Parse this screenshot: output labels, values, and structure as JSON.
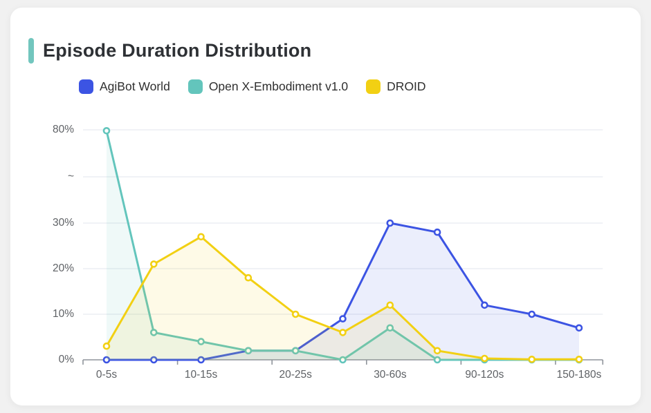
{
  "header": {
    "title": "Episode Duration Distribution"
  },
  "theme": {
    "page_bg": "#F1F1F1",
    "card_bg": "#FFFFFF",
    "accent_bar": "#72C6BE",
    "title_color": "#2E3135",
    "axis_line": "#8F949B",
    "grid_line": "#E7EAF0",
    "tick_label_color": "#5E6165",
    "legend_text_color": "#2F2F2F"
  },
  "chart_data": {
    "type": "line",
    "title": "Episode Duration Distribution",
    "categories": [
      "0-5s",
      "",
      "10-15s",
      "",
      "20-25s",
      "",
      "30-60s",
      "",
      "90-120s",
      "",
      "150-180s"
    ],
    "x_tick_labels": [
      "0-5s",
      "10-15s",
      "20-25s",
      "30-60s",
      "90-120s",
      "150-180s"
    ],
    "y_tick_labels": [
      "0%",
      "10%",
      "20%",
      "30%",
      "~",
      "80%"
    ],
    "y_axis_break": {
      "between": [
        "30%",
        "80%"
      ],
      "symbol": "~"
    },
    "ylim": [
      0,
      80
    ],
    "unit": "percent",
    "grid": true,
    "area_fill": true,
    "legend_position": "top",
    "series": [
      {
        "name": "AgiBot World",
        "color": "#3C54E3",
        "values": [
          0,
          0,
          0,
          2,
          2,
          9,
          30,
          28,
          12,
          10,
          7
        ]
      },
      {
        "name": "Open X-Embodiment v1.0",
        "color": "#63C5BC",
        "values": [
          79.5,
          6,
          4,
          2,
          2,
          0,
          7,
          0,
          0,
          0,
          0
        ]
      },
      {
        "name": "DROID",
        "color": "#F2D013",
        "values": [
          3,
          21,
          27,
          18,
          10,
          6,
          12,
          2,
          0.3,
          0.1,
          0.1
        ]
      }
    ]
  }
}
